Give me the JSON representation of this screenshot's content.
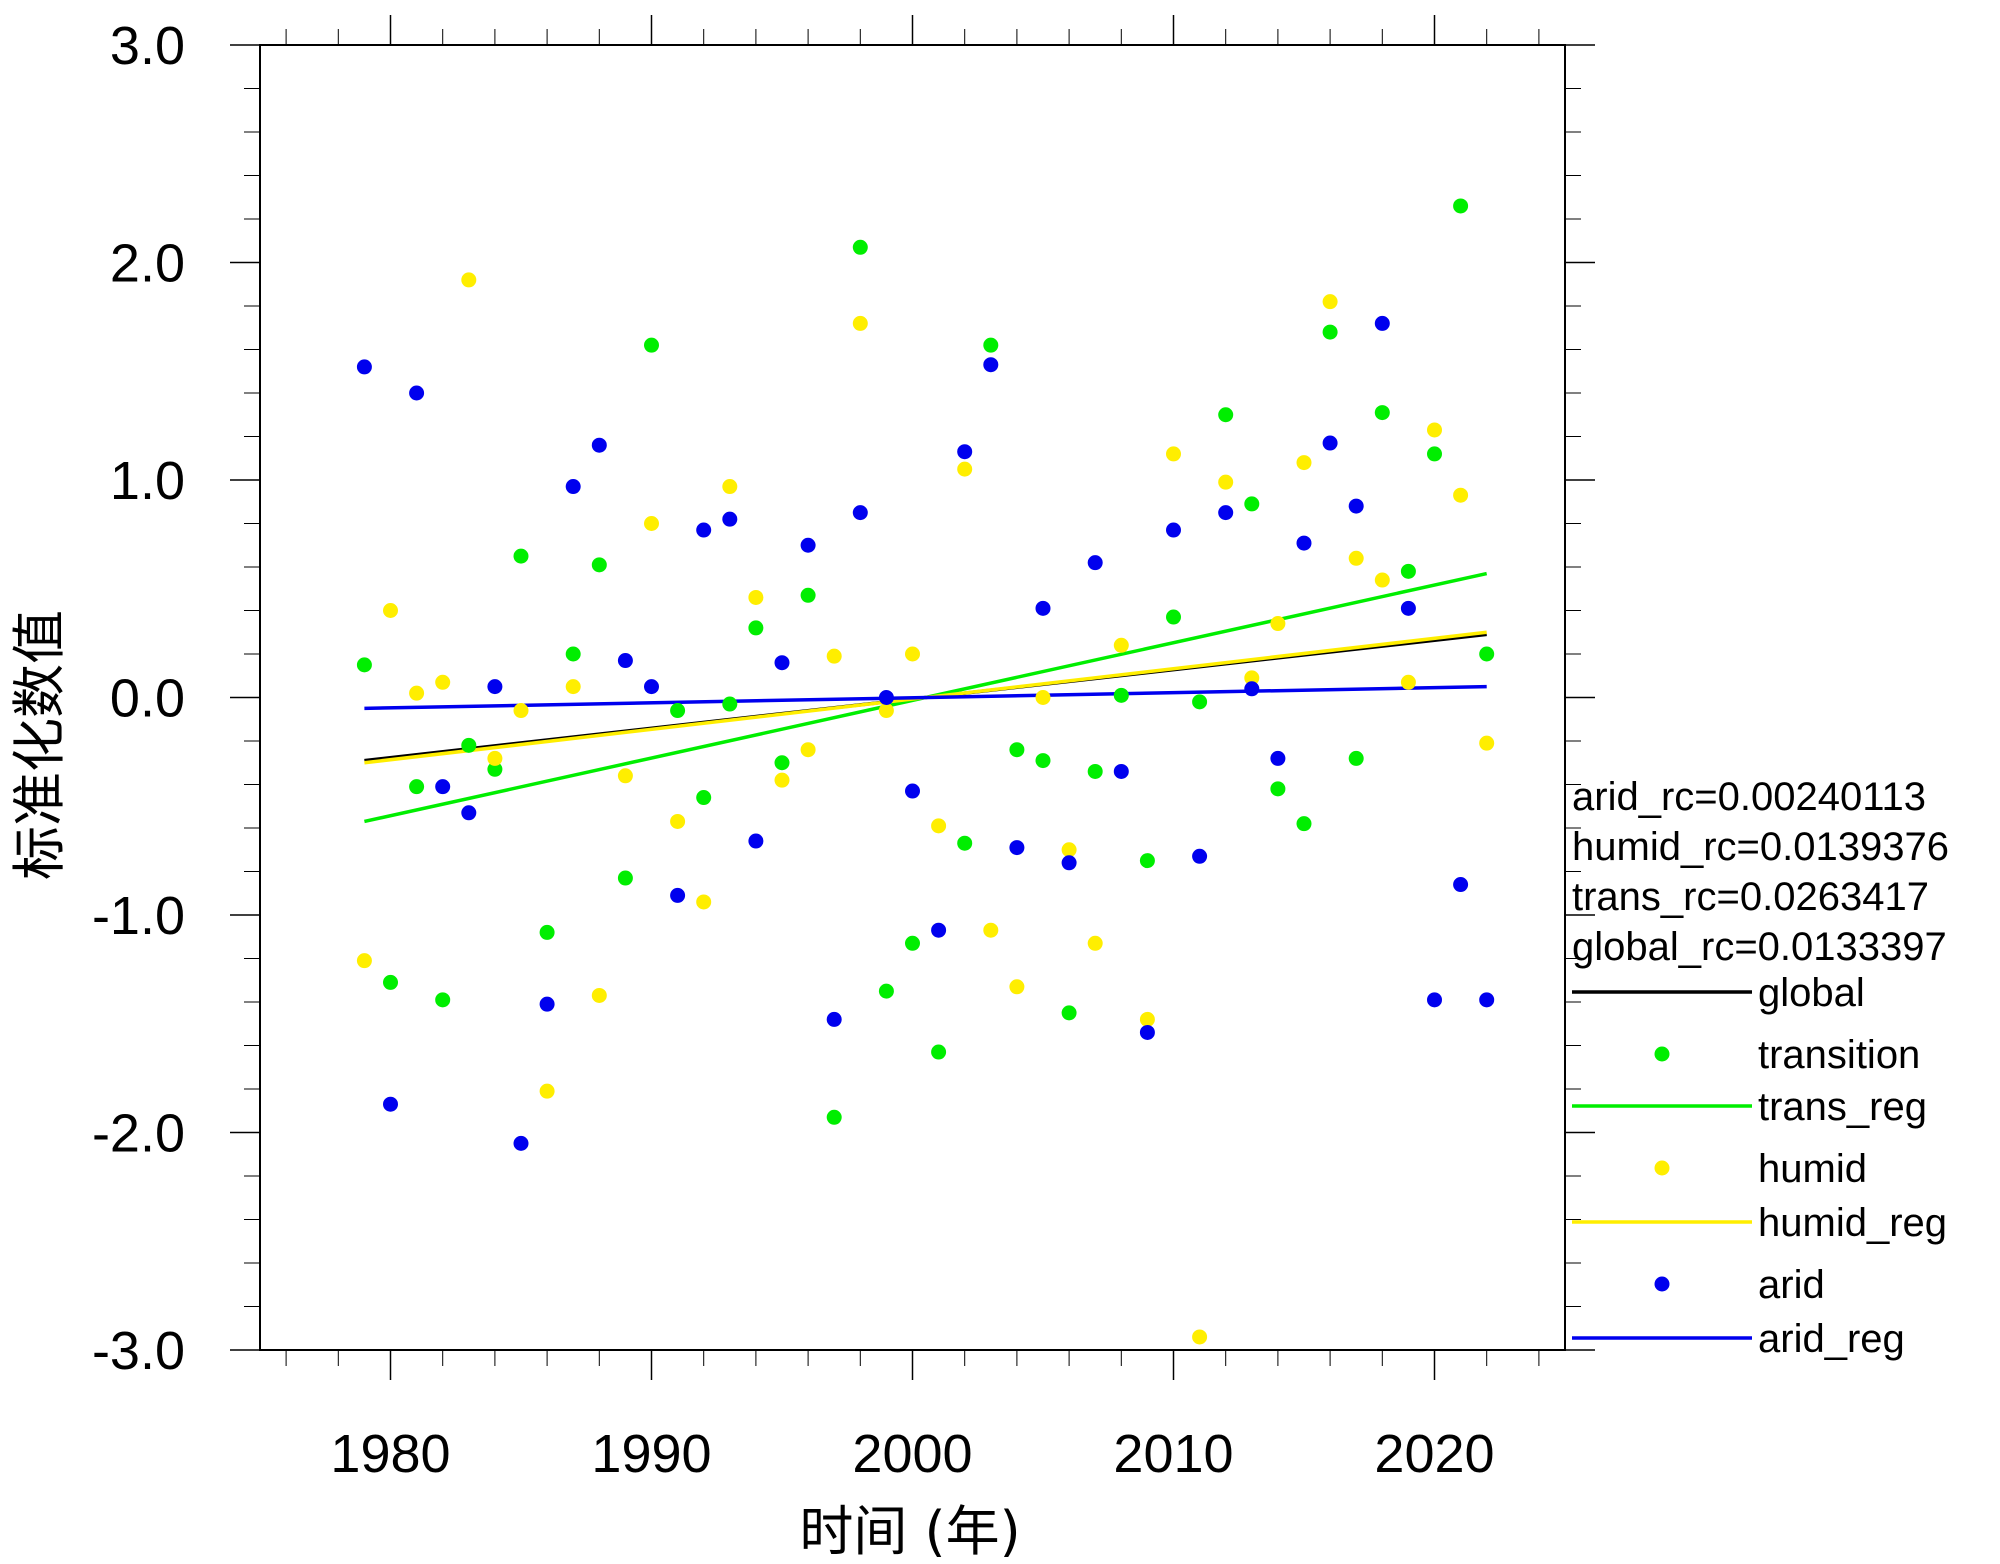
{
  "chart_data": {
    "type": "scatter",
    "title": "",
    "xlabel": "时间 (年)",
    "ylabel": "标准化数值",
    "xlim": [
      1975,
      2025
    ],
    "ylim": [
      -3.0,
      3.0
    ],
    "xticks": [
      1980,
      1990,
      2000,
      2010,
      2020
    ],
    "xtick_labels": [
      "1980",
      "1990",
      "2000",
      "2010",
      "2020"
    ],
    "yticks": [
      -3.0,
      -2.0,
      -1.0,
      0.0,
      1.0,
      2.0,
      3.0
    ],
    "ytick_labels": [
      "-3.0",
      "-2.0",
      "-1.0",
      "0.0",
      "1.0",
      "2.0",
      "3.0"
    ],
    "grid": false,
    "legend_position": "right",
    "annotations": [
      "arid_rc=0.00240113",
      "humid_rc=0.0139376",
      "trans_rc=0.0263417",
      "global_rc=0.0133397"
    ],
    "x": [
      1979,
      1980,
      1981,
      1982,
      1983,
      1984,
      1985,
      1986,
      1987,
      1988,
      1989,
      1990,
      1991,
      1992,
      1993,
      1994,
      1995,
      1996,
      1997,
      1998,
      1999,
      2000,
      2001,
      2002,
      2003,
      2004,
      2005,
      2006,
      2007,
      2008,
      2009,
      2010,
      2011,
      2012,
      2013,
      2014,
      2015,
      2016,
      2017,
      2018,
      2019,
      2020,
      2021,
      2022
    ],
    "series": [
      {
        "name": "transition",
        "kind": "points",
        "color": "#00ee00",
        "values": [
          0.15,
          -1.31,
          -0.41,
          -1.39,
          -0.22,
          -0.33,
          0.65,
          -1.08,
          0.2,
          0.61,
          -0.83,
          1.62,
          -0.06,
          -0.46,
          -0.03,
          0.32,
          -0.3,
          0.47,
          -1.93,
          2.07,
          -1.35,
          -1.13,
          -1.63,
          -0.67,
          1.62,
          -0.24,
          -0.29,
          -1.45,
          -0.34,
          0.01,
          -0.75,
          0.37,
          -0.02,
          1.3,
          0.89,
          -0.42,
          -0.58,
          1.68,
          -0.28,
          1.31,
          0.58,
          1.12,
          2.26,
          0.2
        ]
      },
      {
        "name": "humid",
        "kind": "points",
        "color": "#ffee00",
        "values": [
          -1.21,
          0.4,
          0.02,
          0.07,
          1.92,
          -0.28,
          -0.06,
          -1.81,
          0.05,
          -1.37,
          -0.36,
          0.8,
          -0.57,
          -0.94,
          0.97,
          0.46,
          -0.38,
          -0.24,
          0.19,
          1.72,
          -0.06,
          0.2,
          -0.59,
          1.05,
          -1.07,
          -1.33,
          0.0,
          -0.7,
          -1.13,
          0.24,
          -1.48,
          1.12,
          -2.94,
          0.99,
          0.09,
          0.34,
          1.08,
          1.82,
          0.64,
          0.54,
          0.07,
          1.23,
          0.93,
          -0.21
        ]
      },
      {
        "name": "arid",
        "kind": "points",
        "color": "#0000ee",
        "values": [
          1.52,
          -1.87,
          1.4,
          -0.41,
          -0.53,
          0.05,
          -2.05,
          -1.41,
          0.97,
          1.16,
          0.17,
          0.05,
          -0.91,
          0.77,
          0.82,
          -0.66,
          0.16,
          0.7,
          -1.48,
          0.85,
          0.0,
          -0.43,
          -1.07,
          1.13,
          1.53,
          -0.69,
          0.41,
          -0.76,
          0.62,
          -0.34,
          -1.54,
          0.77,
          -0.73,
          0.85,
          0.04,
          -0.28,
          0.71,
          1.17,
          0.88,
          1.72,
          0.41,
          -1.39,
          -0.86,
          -1.39
        ]
      },
      {
        "name": "global",
        "kind": "line",
        "color": "#000000",
        "x": [
          1979,
          2022
        ],
        "values": [
          -0.29,
          0.29
        ]
      },
      {
        "name": "trans_reg",
        "kind": "line",
        "color": "#00ee00",
        "x": [
          1979,
          2022
        ],
        "values": [
          -0.57,
          0.57
        ]
      },
      {
        "name": "humid_reg",
        "kind": "line",
        "color": "#ffee00",
        "x": [
          1979,
          2022
        ],
        "values": [
          -0.3,
          0.3
        ]
      },
      {
        "name": "arid_reg",
        "kind": "line",
        "color": "#0000ee",
        "x": [
          1979,
          2022
        ],
        "values": [
          -0.05,
          0.05
        ]
      }
    ],
    "legend": [
      {
        "label": "global",
        "symbol": "line",
        "color": "#000000"
      },
      {
        "label": "transition",
        "symbol": "dot",
        "color": "#00ee00"
      },
      {
        "label": "trans_reg",
        "symbol": "line",
        "color": "#00ee00"
      },
      {
        "label": "humid",
        "symbol": "dot",
        "color": "#ffee00"
      },
      {
        "label": "humid_reg",
        "symbol": "line",
        "color": "#ffee00"
      },
      {
        "label": "arid",
        "symbol": "dot",
        "color": "#0000ee"
      },
      {
        "label": "arid_reg",
        "symbol": "line",
        "color": "#0000ee"
      }
    ]
  }
}
